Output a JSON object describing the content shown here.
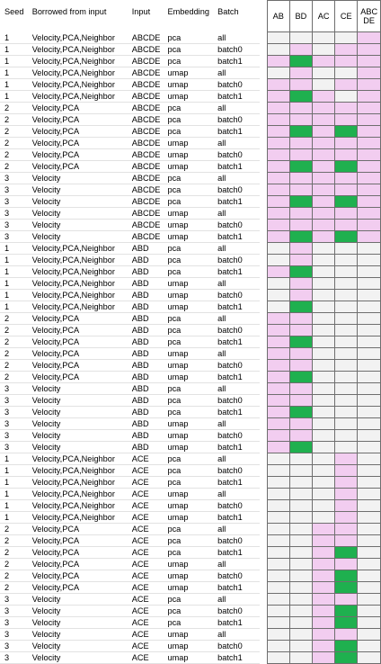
{
  "headers": {
    "seed": "Seed",
    "borrowed": "Borrowed from input",
    "input": "Input",
    "embedding": "Embedding",
    "batch": "Batch",
    "matrix": [
      "AB",
      "BD",
      "AC",
      "CE",
      "ABC\nDE"
    ]
  },
  "colors": {
    "empty": "#f2f2f2",
    "pink": "#f2cdf0",
    "green": "#1fb04f"
  },
  "legend": {
    "0": "empty",
    "1": "pink",
    "2": "green"
  },
  "rows": [
    {
      "seed": "1",
      "borrowed": "Velocity,PCA,Neighbor",
      "input": "ABCDE",
      "embedding": "pca",
      "batch": "all",
      "m": [
        0,
        0,
        0,
        0,
        1
      ]
    },
    {
      "seed": "1",
      "borrowed": "Velocity,PCA,Neighbor",
      "input": "ABCDE",
      "embedding": "pca",
      "batch": "batch0",
      "m": [
        0,
        1,
        0,
        1,
        1
      ]
    },
    {
      "seed": "1",
      "borrowed": "Velocity,PCA,Neighbor",
      "input": "ABCDE",
      "embedding": "pca",
      "batch": "batch1",
      "m": [
        1,
        2,
        1,
        1,
        1
      ]
    },
    {
      "seed": "1",
      "borrowed": "Velocity,PCA,Neighbor",
      "input": "ABCDE",
      "embedding": "umap",
      "batch": "all",
      "m": [
        0,
        1,
        0,
        0,
        1
      ]
    },
    {
      "seed": "1",
      "borrowed": "Velocity,PCA,Neighbor",
      "input": "ABCDE",
      "embedding": "umap",
      "batch": "batch0",
      "m": [
        1,
        1,
        0,
        1,
        1
      ]
    },
    {
      "seed": "1",
      "borrowed": "Velocity,PCA,Neighbor",
      "input": "ABCDE",
      "embedding": "umap",
      "batch": "batch1",
      "m": [
        1,
        2,
        1,
        0,
        1
      ]
    },
    {
      "seed": "2",
      "borrowed": "Velocity,PCA",
      "input": "ABCDE",
      "embedding": "pca",
      "batch": "all",
      "m": [
        1,
        1,
        1,
        1,
        1
      ]
    },
    {
      "seed": "2",
      "borrowed": "Velocity,PCA",
      "input": "ABCDE",
      "embedding": "pca",
      "batch": "batch0",
      "m": [
        1,
        1,
        1,
        1,
        1
      ]
    },
    {
      "seed": "2",
      "borrowed": "Velocity,PCA",
      "input": "ABCDE",
      "embedding": "pca",
      "batch": "batch1",
      "m": [
        1,
        2,
        1,
        2,
        1
      ]
    },
    {
      "seed": "2",
      "borrowed": "Velocity,PCA",
      "input": "ABCDE",
      "embedding": "umap",
      "batch": "all",
      "m": [
        1,
        1,
        1,
        1,
        1
      ]
    },
    {
      "seed": "2",
      "borrowed": "Velocity,PCA",
      "input": "ABCDE",
      "embedding": "umap",
      "batch": "batch0",
      "m": [
        1,
        1,
        1,
        1,
        1
      ]
    },
    {
      "seed": "2",
      "borrowed": "Velocity,PCA",
      "input": "ABCDE",
      "embedding": "umap",
      "batch": "batch1",
      "m": [
        1,
        2,
        1,
        2,
        1
      ]
    },
    {
      "seed": "3",
      "borrowed": "Velocity",
      "input": "ABCDE",
      "embedding": "pca",
      "batch": "all",
      "m": [
        1,
        1,
        1,
        1,
        1
      ]
    },
    {
      "seed": "3",
      "borrowed": "Velocity",
      "input": "ABCDE",
      "embedding": "pca",
      "batch": "batch0",
      "m": [
        1,
        1,
        1,
        1,
        1
      ]
    },
    {
      "seed": "3",
      "borrowed": "Velocity",
      "input": "ABCDE",
      "embedding": "pca",
      "batch": "batch1",
      "m": [
        1,
        2,
        1,
        2,
        1
      ]
    },
    {
      "seed": "3",
      "borrowed": "Velocity",
      "input": "ABCDE",
      "embedding": "umap",
      "batch": "all",
      "m": [
        1,
        1,
        1,
        1,
        1
      ]
    },
    {
      "seed": "3",
      "borrowed": "Velocity",
      "input": "ABCDE",
      "embedding": "umap",
      "batch": "batch0",
      "m": [
        1,
        1,
        1,
        1,
        1
      ]
    },
    {
      "seed": "3",
      "borrowed": "Velocity",
      "input": "ABCDE",
      "embedding": "umap",
      "batch": "batch1",
      "m": [
        1,
        2,
        1,
        2,
        1
      ]
    },
    {
      "seed": "1",
      "borrowed": "Velocity,PCA,Neighbor",
      "input": "ABD",
      "embedding": "pca",
      "batch": "all",
      "m": [
        0,
        1,
        0,
        0,
        0
      ]
    },
    {
      "seed": "1",
      "borrowed": "Velocity,PCA,Neighbor",
      "input": "ABD",
      "embedding": "pca",
      "batch": "batch0",
      "m": [
        0,
        1,
        0,
        0,
        0
      ]
    },
    {
      "seed": "1",
      "borrowed": "Velocity,PCA,Neighbor",
      "input": "ABD",
      "embedding": "pca",
      "batch": "batch1",
      "m": [
        1,
        2,
        0,
        0,
        0
      ]
    },
    {
      "seed": "1",
      "borrowed": "Velocity,PCA,Neighbor",
      "input": "ABD",
      "embedding": "umap",
      "batch": "all",
      "m": [
        0,
        1,
        0,
        0,
        0
      ]
    },
    {
      "seed": "1",
      "borrowed": "Velocity,PCA,Neighbor",
      "input": "ABD",
      "embedding": "umap",
      "batch": "batch0",
      "m": [
        0,
        1,
        0,
        0,
        0
      ]
    },
    {
      "seed": "1",
      "borrowed": "Velocity,PCA,Neighbor",
      "input": "ABD",
      "embedding": "umap",
      "batch": "batch1",
      "m": [
        0,
        2,
        0,
        0,
        0
      ]
    },
    {
      "seed": "2",
      "borrowed": "Velocity,PCA",
      "input": "ABD",
      "embedding": "pca",
      "batch": "all",
      "m": [
        1,
        1,
        0,
        0,
        0
      ]
    },
    {
      "seed": "2",
      "borrowed": "Velocity,PCA",
      "input": "ABD",
      "embedding": "pca",
      "batch": "batch0",
      "m": [
        1,
        1,
        0,
        0,
        0
      ]
    },
    {
      "seed": "2",
      "borrowed": "Velocity,PCA",
      "input": "ABD",
      "embedding": "pca",
      "batch": "batch1",
      "m": [
        1,
        2,
        0,
        0,
        0
      ]
    },
    {
      "seed": "2",
      "borrowed": "Velocity,PCA",
      "input": "ABD",
      "embedding": "umap",
      "batch": "all",
      "m": [
        1,
        1,
        0,
        0,
        0
      ]
    },
    {
      "seed": "2",
      "borrowed": "Velocity,PCA",
      "input": "ABD",
      "embedding": "umap",
      "batch": "batch0",
      "m": [
        1,
        1,
        0,
        0,
        0
      ]
    },
    {
      "seed": "2",
      "borrowed": "Velocity,PCA",
      "input": "ABD",
      "embedding": "umap",
      "batch": "batch1",
      "m": [
        1,
        2,
        0,
        0,
        0
      ]
    },
    {
      "seed": "3",
      "borrowed": "Velocity",
      "input": "ABD",
      "embedding": "pca",
      "batch": "all",
      "m": [
        1,
        1,
        0,
        0,
        0
      ]
    },
    {
      "seed": "3",
      "borrowed": "Velocity",
      "input": "ABD",
      "embedding": "pca",
      "batch": "batch0",
      "m": [
        1,
        1,
        0,
        0,
        0
      ]
    },
    {
      "seed": "3",
      "borrowed": "Velocity",
      "input": "ABD",
      "embedding": "pca",
      "batch": "batch1",
      "m": [
        1,
        2,
        0,
        0,
        0
      ]
    },
    {
      "seed": "3",
      "borrowed": "Velocity",
      "input": "ABD",
      "embedding": "umap",
      "batch": "all",
      "m": [
        1,
        1,
        0,
        0,
        0
      ]
    },
    {
      "seed": "3",
      "borrowed": "Velocity",
      "input": "ABD",
      "embedding": "umap",
      "batch": "batch0",
      "m": [
        1,
        1,
        0,
        0,
        0
      ]
    },
    {
      "seed": "3",
      "borrowed": "Velocity",
      "input": "ABD",
      "embedding": "umap",
      "batch": "batch1",
      "m": [
        1,
        2,
        0,
        0,
        0
      ]
    },
    {
      "seed": "1",
      "borrowed": "Velocity,PCA,Neighbor",
      "input": "ACE",
      "embedding": "pca",
      "batch": "all",
      "m": [
        0,
        0,
        0,
        1,
        0
      ]
    },
    {
      "seed": "1",
      "borrowed": "Velocity,PCA,Neighbor",
      "input": "ACE",
      "embedding": "pca",
      "batch": "batch0",
      "m": [
        0,
        0,
        0,
        1,
        0
      ]
    },
    {
      "seed": "1",
      "borrowed": "Velocity,PCA,Neighbor",
      "input": "ACE",
      "embedding": "pca",
      "batch": "batch1",
      "m": [
        0,
        0,
        0,
        1,
        0
      ]
    },
    {
      "seed": "1",
      "borrowed": "Velocity,PCA,Neighbor",
      "input": "ACE",
      "embedding": "umap",
      "batch": "all",
      "m": [
        0,
        0,
        0,
        1,
        0
      ]
    },
    {
      "seed": "1",
      "borrowed": "Velocity,PCA,Neighbor",
      "input": "ACE",
      "embedding": "umap",
      "batch": "batch0",
      "m": [
        0,
        0,
        0,
        1,
        0
      ]
    },
    {
      "seed": "1",
      "borrowed": "Velocity,PCA,Neighbor",
      "input": "ACE",
      "embedding": "umap",
      "batch": "batch1",
      "m": [
        0,
        0,
        0,
        1,
        0
      ]
    },
    {
      "seed": "2",
      "borrowed": "Velocity,PCA",
      "input": "ACE",
      "embedding": "pca",
      "batch": "all",
      "m": [
        0,
        0,
        1,
        1,
        0
      ]
    },
    {
      "seed": "2",
      "borrowed": "Velocity,PCA",
      "input": "ACE",
      "embedding": "pca",
      "batch": "batch0",
      "m": [
        0,
        0,
        1,
        1,
        0
      ]
    },
    {
      "seed": "2",
      "borrowed": "Velocity,PCA",
      "input": "ACE",
      "embedding": "pca",
      "batch": "batch1",
      "m": [
        0,
        0,
        1,
        2,
        0
      ]
    },
    {
      "seed": "2",
      "borrowed": "Velocity,PCA",
      "input": "ACE",
      "embedding": "umap",
      "batch": "all",
      "m": [
        0,
        0,
        1,
        1,
        0
      ]
    },
    {
      "seed": "2",
      "borrowed": "Velocity,PCA",
      "input": "ACE",
      "embedding": "umap",
      "batch": "batch0",
      "m": [
        0,
        0,
        1,
        2,
        0
      ]
    },
    {
      "seed": "2",
      "borrowed": "Velocity,PCA",
      "input": "ACE",
      "embedding": "umap",
      "batch": "batch1",
      "m": [
        0,
        0,
        1,
        2,
        0
      ]
    },
    {
      "seed": "3",
      "borrowed": "Velocity",
      "input": "ACE",
      "embedding": "pca",
      "batch": "all",
      "m": [
        0,
        0,
        1,
        1,
        0
      ]
    },
    {
      "seed": "3",
      "borrowed": "Velocity",
      "input": "ACE",
      "embedding": "pca",
      "batch": "batch0",
      "m": [
        0,
        0,
        1,
        2,
        0
      ]
    },
    {
      "seed": "3",
      "borrowed": "Velocity",
      "input": "ACE",
      "embedding": "pca",
      "batch": "batch1",
      "m": [
        0,
        0,
        1,
        2,
        0
      ]
    },
    {
      "seed": "3",
      "borrowed": "Velocity",
      "input": "ACE",
      "embedding": "umap",
      "batch": "all",
      "m": [
        0,
        0,
        1,
        1,
        0
      ]
    },
    {
      "seed": "3",
      "borrowed": "Velocity",
      "input": "ACE",
      "embedding": "umap",
      "batch": "batch0",
      "m": [
        0,
        0,
        1,
        2,
        0
      ]
    },
    {
      "seed": "3",
      "borrowed": "Velocity",
      "input": "ACE",
      "embedding": "umap",
      "batch": "batch1",
      "m": [
        0,
        0,
        1,
        2,
        0
      ]
    }
  ]
}
